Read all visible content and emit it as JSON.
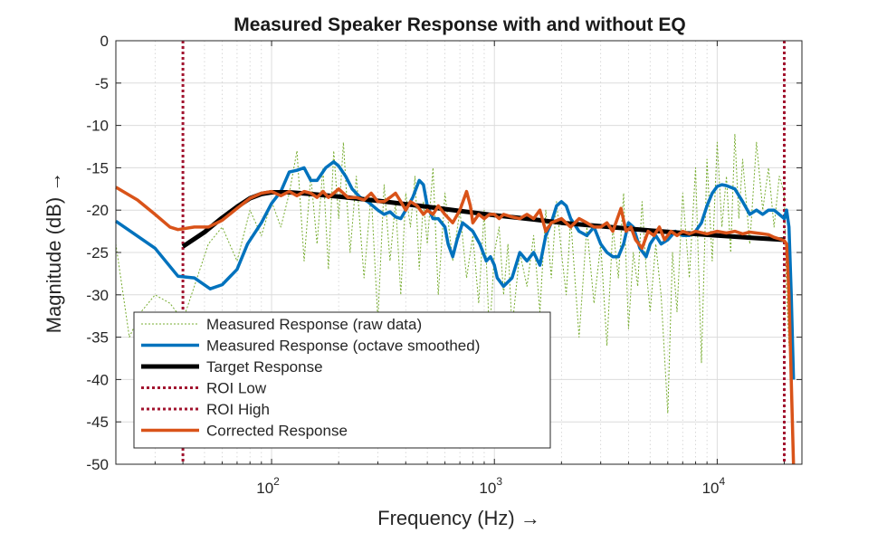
{
  "chart_data": {
    "type": "line",
    "title": "Measured Speaker Response with and without EQ",
    "xlabel": "Frequency  (Hz)  →",
    "ylabel": "Magnitude  (dB)  →",
    "xscale": "log",
    "xlim": [
      20,
      24000
    ],
    "ylim": [
      -50,
      0
    ],
    "grid": true,
    "minor_grid": true,
    "legend_position": "bottom-left",
    "x_ticks": [
      {
        "value": 100,
        "base": "10",
        "exp": "2"
      },
      {
        "value": 1000,
        "base": "10",
        "exp": "3"
      },
      {
        "value": 10000,
        "base": "10",
        "exp": "4"
      }
    ],
    "y_ticks": [
      "0",
      "-5",
      "-10",
      "-15",
      "-20",
      "-25",
      "-30",
      "-35",
      "-40",
      "-45",
      "-50"
    ],
    "series": [
      {
        "name": "Measured Response (raw data)",
        "color": "#77AC30",
        "style": "dotted-thin",
        "x": [
          20,
          23,
          26,
          30,
          35,
          40,
          45,
          52,
          60,
          70,
          80,
          90,
          100,
          110,
          120,
          130,
          140,
          150,
          160,
          170,
          180,
          190,
          200,
          210,
          225,
          240,
          260,
          280,
          300,
          320,
          340,
          360,
          380,
          400,
          420,
          440,
          460,
          480,
          500,
          530,
          560,
          600,
          650,
          700,
          750,
          800,
          850,
          900,
          950,
          1000,
          1050,
          1100,
          1150,
          1200,
          1300,
          1400,
          1500,
          1600,
          1700,
          1800,
          1900,
          2000,
          2100,
          2200,
          2400,
          2600,
          2800,
          3000,
          3200,
          3400,
          3600,
          3800,
          4000,
          4200,
          4400,
          4600,
          4800,
          5000,
          5300,
          5600,
          6000,
          6300,
          6600,
          7000,
          7500,
          8000,
          8500,
          9000,
          9500,
          10000,
          10500,
          11000,
          11500,
          12000,
          12500,
          13000,
          14000,
          15000,
          16000,
          17000,
          18000,
          19000,
          20000,
          20500,
          21000
        ],
        "y": [
          -24,
          -35,
          -32,
          -30,
          -31,
          -33,
          -29,
          -24,
          -22,
          -26,
          -20,
          -23,
          -19,
          -22,
          -18,
          -13,
          -26,
          -16,
          -24,
          -15,
          -27,
          -13,
          -21,
          -12,
          -25,
          -16,
          -28,
          -18,
          -33,
          -17,
          -26,
          -19,
          -30,
          -18,
          -22,
          -16,
          -27,
          -19,
          -24,
          -15,
          -30,
          -18,
          -26,
          -20,
          -28,
          -23,
          -31,
          -20,
          -35,
          -25,
          -22,
          -30,
          -24,
          -34,
          -25,
          -29,
          -23,
          -32,
          -20,
          -28,
          -19,
          -25,
          -30,
          -21,
          -35,
          -22,
          -31,
          -24,
          -36,
          -22,
          -28,
          -18,
          -34,
          -25,
          -29,
          -19,
          -27,
          -32,
          -24,
          -30,
          -44,
          -25,
          -32,
          -18,
          -28,
          -15,
          -38,
          -14,
          -26,
          -12,
          -22,
          -16,
          -25,
          -11,
          -21,
          -14,
          -24,
          -12,
          -20,
          -15,
          -22,
          -16,
          -18,
          -30,
          -36
        ]
      },
      {
        "name": "Measured Response (octave smoothed)",
        "color": "#0072BD",
        "style": "solid-thick",
        "x": [
          20,
          30,
          38,
          45,
          53,
          60,
          70,
          78,
          90,
          100,
          110,
          120,
          130,
          140,
          150,
          160,
          175,
          190,
          200,
          215,
          230,
          250,
          270,
          300,
          320,
          340,
          360,
          380,
          400,
          430,
          460,
          480,
          500,
          530,
          560,
          600,
          620,
          650,
          680,
          720,
          760,
          800,
          860,
          920,
          960,
          1000,
          1030,
          1100,
          1200,
          1300,
          1400,
          1500,
          1600,
          1700,
          1800,
          1900,
          2000,
          2100,
          2200,
          2400,
          2600,
          2800,
          3000,
          3200,
          3400,
          3600,
          3800,
          4000,
          4200,
          4500,
          4800,
          5000,
          5300,
          5600,
          6000,
          6500,
          7000,
          7500,
          8000,
          8500,
          9000,
          9500,
          10000,
          10500,
          11000,
          12000,
          13000,
          14000,
          15000,
          16000,
          17000,
          18000,
          19000,
          20000,
          20500,
          21000,
          21500,
          22000
        ],
        "y": [
          -21.3,
          -24.5,
          -27.8,
          -28.0,
          -29.3,
          -28.8,
          -27.0,
          -24.0,
          -21.5,
          -19.2,
          -17.8,
          -15.5,
          -15.3,
          -15.0,
          -16.5,
          -16.5,
          -15.0,
          -14.3,
          -14.8,
          -16.0,
          -17.5,
          -18.5,
          -19.0,
          -20.0,
          -20.5,
          -20.2,
          -20.8,
          -21.0,
          -20.0,
          -18.5,
          -16.5,
          -17.0,
          -19.5,
          -21.0,
          -21.0,
          -22.0,
          -24.0,
          -25.5,
          -23.5,
          -21.5,
          -22.0,
          -22.5,
          -24.0,
          -26.0,
          -25.5,
          -26.5,
          -28.0,
          -29.0,
          -28.0,
          -25.0,
          -26.0,
          -25.0,
          -26.5,
          -23.0,
          -21.5,
          -19.5,
          -19.0,
          -19.5,
          -21.0,
          -22.5,
          -23.0,
          -22.0,
          -24.0,
          -25.0,
          -25.5,
          -25.5,
          -24.0,
          -21.5,
          -22.0,
          -24.5,
          -25.5,
          -24.0,
          -23.0,
          -24.0,
          -23.5,
          -22.5,
          -23.0,
          -23.0,
          -22.5,
          -21.5,
          -19.5,
          -18.0,
          -17.2,
          -17.0,
          -17.1,
          -17.5,
          -19.0,
          -20.5,
          -20.0,
          -20.5,
          -20.0,
          -20.0,
          -20.5,
          -21.0,
          -20.0,
          -22.0,
          -30.0,
          -40.0
        ]
      },
      {
        "name": "Target Response",
        "color": "#000000",
        "style": "solid-thicker",
        "x": [
          40,
          50,
          60,
          70,
          80,
          90,
          100,
          120,
          150,
          200,
          300,
          500,
          700,
          1000,
          1500,
          2000,
          3000,
          5000,
          7000,
          10000,
          15000,
          20000
        ],
        "y": [
          -24.3,
          -22.6,
          -20.9,
          -19.6,
          -18.6,
          -18.1,
          -17.9,
          -17.9,
          -18.1,
          -18.4,
          -18.9,
          -19.6,
          -20.1,
          -20.6,
          -21.1,
          -21.5,
          -21.9,
          -22.4,
          -22.7,
          -23.0,
          -23.3,
          -23.5
        ]
      },
      {
        "name": "ROI Low",
        "color": "#A2142F",
        "style": "dashed-vertical",
        "x": [
          40,
          40
        ],
        "y": [
          0,
          -50
        ]
      },
      {
        "name": "ROI High",
        "color": "#A2142F",
        "style": "dashed-vertical",
        "x": [
          20000,
          20000
        ],
        "y": [
          0,
          -50
        ]
      },
      {
        "name": "Corrected Response",
        "color": "#D95319",
        "style": "solid-thick",
        "x": [
          20,
          25,
          30,
          35,
          38,
          45,
          52,
          60,
          70,
          80,
          90,
          100,
          110,
          120,
          130,
          140,
          150,
          160,
          170,
          180,
          190,
          200,
          220,
          240,
          260,
          280,
          300,
          320,
          340,
          360,
          380,
          400,
          420,
          450,
          480,
          500,
          530,
          560,
          600,
          650,
          700,
          750,
          780,
          800,
          850,
          900,
          950,
          1000,
          1050,
          1100,
          1200,
          1300,
          1400,
          1500,
          1600,
          1700,
          1800,
          2000,
          2200,
          2400,
          2600,
          2800,
          3000,
          3200,
          3400,
          3700,
          3900,
          4100,
          4300,
          4600,
          4900,
          5200,
          5500,
          5800,
          6200,
          6600,
          7000,
          7500,
          8000,
          9000,
          10000,
          11000,
          12000,
          13000,
          14000,
          15000,
          16000,
          17000,
          18000,
          19000,
          20000,
          20500,
          21000,
          21500,
          22000
        ],
        "y": [
          -17.3,
          -18.8,
          -20.5,
          -22.0,
          -22.3,
          -22.0,
          -22.0,
          -21.2,
          -19.8,
          -18.6,
          -18.0,
          -17.8,
          -18.3,
          -17.8,
          -18.3,
          -17.8,
          -18.0,
          -18.5,
          -17.8,
          -18.5,
          -18.0,
          -17.5,
          -18.5,
          -18.5,
          -18.8,
          -18.0,
          -19.0,
          -19.0,
          -18.5,
          -18.0,
          -19.0,
          -20.0,
          -19.0,
          -19.5,
          -20.5,
          -20.0,
          -20.5,
          -19.5,
          -20.5,
          -21.5,
          -20.0,
          -17.8,
          -19.5,
          -21.5,
          -20.5,
          -21.0,
          -20.5,
          -20.5,
          -21.0,
          -20.5,
          -20.8,
          -21.0,
          -20.5,
          -21.0,
          -20.0,
          -22.5,
          -21.5,
          -21.0,
          -22.0,
          -21.0,
          -21.5,
          -22.0,
          -22.0,
          -21.5,
          -22.5,
          -19.8,
          -22.5,
          -22.0,
          -23.5,
          -24.5,
          -22.5,
          -23.0,
          -22.0,
          -23.5,
          -22.5,
          -23.0,
          -22.5,
          -22.8,
          -22.5,
          -22.8,
          -22.5,
          -22.7,
          -22.5,
          -22.8,
          -22.6,
          -22.7,
          -22.8,
          -22.9,
          -23.2,
          -23.4,
          -23.6,
          -24.0,
          -30.0,
          -40.0,
          -50.0
        ]
      }
    ]
  }
}
